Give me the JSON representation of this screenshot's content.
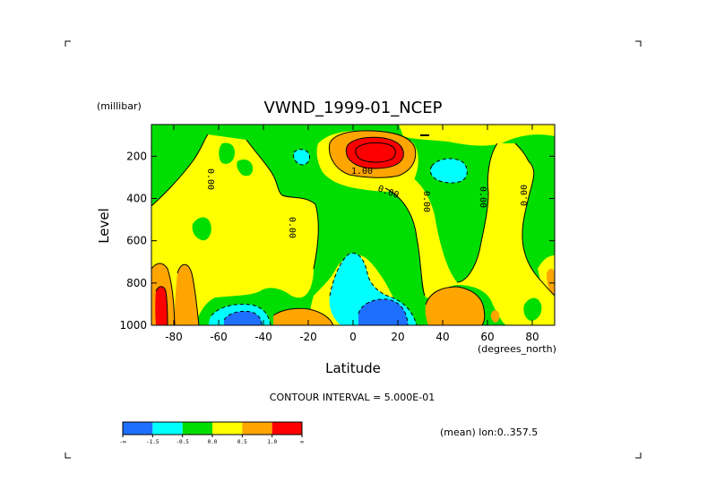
{
  "chart_data": {
    "type": "heatmap",
    "title": "VWND_1999-01_NCEP",
    "xlabel": "Latitude",
    "x_units": "(degrees_north)",
    "ylabel": "Level",
    "y_units": "(millibar)",
    "xlim": [
      -90,
      90
    ],
    "ylim": [
      1000,
      50
    ],
    "x_ticks": [
      -80,
      -60,
      -40,
      -20,
      0,
      20,
      40,
      60,
      80
    ],
    "y_ticks": [
      200,
      400,
      600,
      800,
      1000
    ],
    "contour_interval_text": "CONTOUR INTERVAL = 5.000E-01",
    "averaging_text": "(mean) lon:0..357.5",
    "contour_labels": [
      "0.00",
      "0.00",
      "0.00",
      "0.00",
      "0.00",
      "0.00",
      "0.00",
      "1.00"
    ],
    "colorbar": {
      "levels": [
        "-∞",
        "-1.5",
        "-0.5",
        "0.0",
        "0.5",
        "1.0",
        "∞"
      ],
      "colors": [
        "#1f6fff",
        "#00ffff",
        "#00dd00",
        "#ffff00",
        "#ffa500",
        "#ff0000"
      ],
      "bins": [
        "< -1.5",
        "-1.5 to -0.5",
        "-0.5 to 0.0",
        "0.0 to 0.5",
        "0.5 to 1.0",
        "> 1.0"
      ]
    },
    "features": [
      {
        "region": "northern tropics upper troposphere",
        "lat": 10,
        "level": 150,
        "value": "> 1.0"
      },
      {
        "region": "northern tropics near surface",
        "lat": 10,
        "level": 950,
        "value": "< -1.5"
      },
      {
        "region": "southern mid-latitudes near surface",
        "lat": -52,
        "level": 960,
        "value": "< -1.5"
      },
      {
        "region": "Antarctic near surface",
        "lat": -86,
        "level": 900,
        "value": "> 1.0"
      },
      {
        "region": "northern subtropics upper troposphere",
        "lat": 40,
        "level": 220,
        "value": "-1.5 to -0.5"
      },
      {
        "region": "equator lower troposphere",
        "lat": 0,
        "level": 780,
        "value": "-1.5 to -0.5"
      }
    ]
  }
}
